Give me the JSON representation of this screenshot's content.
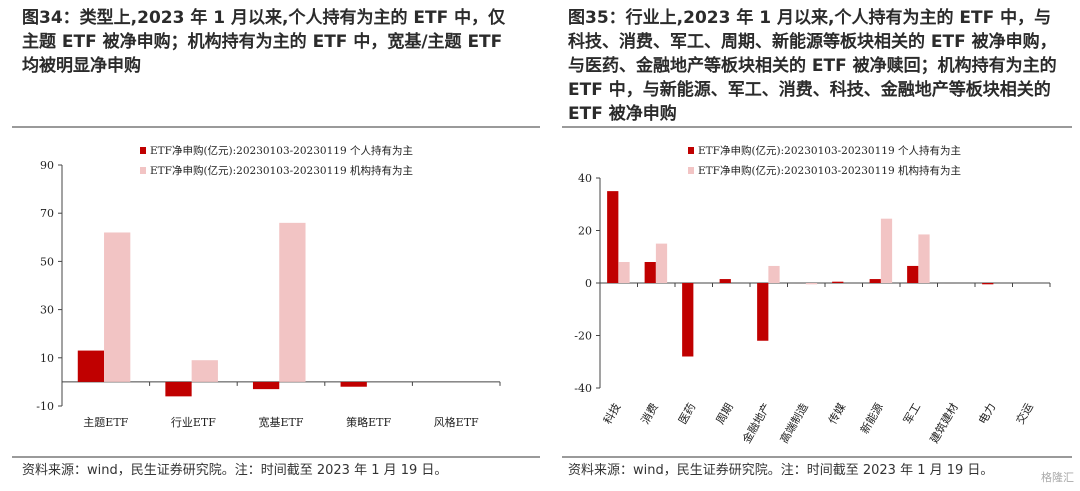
{
  "colors": {
    "individual": "#c00000",
    "institutional": "#f2c4c4",
    "axis": "#444444",
    "rule": "#9a9a9a"
  },
  "left": {
    "title": "图34：类型上,2023 年 1 月以来,个人持有为主的 ETF 中，仅主题 ETF 被净申购；机构持有为主的 ETF 中，宽基/主题 ETF 均被明显净申购",
    "source": "资料来源：wind，民生证券研究院。注：时间截至 2023 年 1 月 19 日。"
  },
  "right": {
    "title": "图35：行业上,2023 年 1 月以来,个人持有为主的 ETF 中，与科技、消费、军工、周期、新能源等板块相关的 ETF 被净申购，与医药、金融地产等板块相关的 ETF 被净赎回；机构持有为主的 ETF 中，与新能源、军工、消费、科技、金融地产等板块相关的 ETF 被净申购",
    "source": "资料来源：wind，民生证券研究院。注：时间截至 2023 年 1 月 19 日。"
  },
  "watermark": "格隆汇",
  "chart_data": [
    {
      "type": "bar",
      "categories": [
        "主题ETF",
        "行业ETF",
        "宽基ETF",
        "策略ETF",
        "风格ETF"
      ],
      "series": [
        {
          "name": "ETF净申购(亿元):20230103-20230119 个人持有为主",
          "values": [
            13,
            -6,
            -3,
            -2,
            0
          ]
        },
        {
          "name": "ETF净申购(亿元):20230103-20230119 机构持有为主",
          "values": [
            62,
            9,
            66,
            0,
            0
          ]
        }
      ],
      "yticks": [
        -10,
        10,
        30,
        50,
        70,
        90
      ],
      "ylim": [
        -10,
        90
      ],
      "legend": "top"
    },
    {
      "type": "bar",
      "categories": [
        "科技",
        "消费",
        "医药",
        "周期",
        "金融地产",
        "高端制造",
        "传媒",
        "新能源",
        "军工",
        "建筑建材",
        "电力",
        "交运"
      ],
      "series": [
        {
          "name": "ETF净申购(亿元):20230103-20230119 个人持有为主",
          "values": [
            35,
            8,
            -28,
            1.5,
            -22,
            0,
            0.5,
            1.5,
            6.5,
            0,
            -0.5,
            0
          ]
        },
        {
          "name": "ETF净申购(亿元):20230103-20230119 机构持有为主",
          "values": [
            8,
            15,
            0,
            0,
            6.5,
            -0.5,
            0,
            24.5,
            18.5,
            0,
            0,
            0
          ]
        }
      ],
      "yticks": [
        -40,
        -20,
        0,
        20,
        40
      ],
      "ylim": [
        -40,
        40
      ],
      "legend": "top"
    }
  ]
}
